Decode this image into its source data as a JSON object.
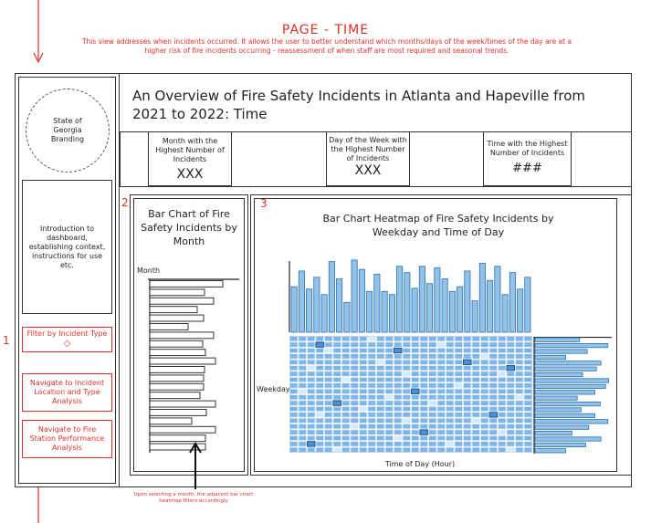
{
  "header": {
    "page_title": "PAGE - TIME",
    "description": "This view addresses when incidents occurred. It allows the user to better understand which months/days of the week/times of the day are at a higher risk of fire incidents occurring - reassessment of when staff are most required and seasonal trends."
  },
  "sidebar": {
    "branding": "State of Georgia Branding",
    "intro": "Introduction to dashboard, establishing context, instructions for use etc.",
    "filter_label": "Filter by Incident Type",
    "nav_incident": "Navigate to Incident Location and Type Analysis",
    "nav_station": "Navigate to Fire Station Performance Analysis",
    "marker_1": "1"
  },
  "main": {
    "title": "An Overview of Fire Safety Incidents in Atlanta and Hapeville from 2021 to 2022: Time"
  },
  "kpis": [
    {
      "label": "Month with the Highest Number of Incidents",
      "value": "XXX"
    },
    {
      "label": "Day of the Week with the Highest Number of Incidents",
      "value": "XXX"
    },
    {
      "label": "Time with the Highest Number of Incidents",
      "value": "###"
    }
  ],
  "month_chart": {
    "marker": "2",
    "title": "Bar Chart of Fire Safety Incidents by Month",
    "axis_label": "Month",
    "annotation": "Upon selecting a month, the adjacent bar chart heatmap filters accordingly"
  },
  "heatmap_chart": {
    "marker": "3",
    "title": "Bar Chart Heatmap of Fire Safety Incidents by Weekday and Time of Day",
    "y_label": "Weekday",
    "x_label": "Time of Day (Hour)"
  },
  "colors": {
    "accent_red": "#e0302a",
    "bar_blue": "#8fc3ea",
    "bar_stroke": "#2f6fae",
    "cell_blue": "#7fb6e6"
  },
  "chart_data": [
    {
      "type": "bar",
      "orientation": "horizontal",
      "values": [
        0.8,
        0.6,
        0.7,
        0.52,
        0.59,
        0.42,
        0.7,
        0.58,
        0.61,
        0.72,
        0.6,
        0.59,
        0.59,
        0.55,
        0.72,
        0.62,
        0.46,
        0.72,
        0.61,
        0.61
      ]
    },
    {
      "type": "bar",
      "values": [
        0.58,
        0.78,
        0.55,
        0.7,
        0.48,
        0.9,
        0.68,
        0.38,
        0.92,
        0.8,
        0.52,
        0.74,
        0.52,
        0.48,
        0.84,
        0.76,
        0.56,
        0.84,
        0.62,
        0.82,
        0.68,
        0.52,
        0.58,
        0.78,
        0.4,
        0.88,
        0.66,
        0.84,
        0.48,
        0.76,
        0.55,
        0.7
      ]
    },
    {
      "type": "bar",
      "orientation": "horizontal",
      "values": [
        0.58,
        0.95,
        0.68,
        0.4,
        0.86,
        0.8,
        0.62,
        0.96,
        0.92,
        0.78,
        0.55,
        0.85,
        0.6,
        0.78,
        0.95,
        0.7,
        0.48,
        0.86,
        0.66,
        0.4
      ]
    },
    {
      "type": "heatmap",
      "rows": 20,
      "cols": 28,
      "highlight_cells": [
        [
          1,
          3
        ],
        [
          2,
          12
        ],
        [
          4,
          20
        ],
        [
          5,
          25
        ],
        [
          9,
          14
        ],
        [
          11,
          5
        ],
        [
          13,
          23
        ],
        [
          16,
          15
        ],
        [
          18,
          2
        ]
      ],
      "light_cells": [
        [
          0,
          9
        ],
        [
          1,
          17
        ],
        [
          2,
          4
        ],
        [
          3,
          22
        ],
        [
          4,
          10
        ],
        [
          5,
          2
        ],
        [
          6,
          13
        ],
        [
          6,
          24
        ],
        [
          7,
          6
        ],
        [
          8,
          19
        ],
        [
          9,
          1
        ],
        [
          10,
          11
        ],
        [
          10,
          26
        ],
        [
          11,
          16
        ],
        [
          12,
          8
        ],
        [
          13,
          3
        ],
        [
          14,
          13
        ],
        [
          14,
          21
        ],
        [
          15,
          7
        ],
        [
          16,
          24
        ],
        [
          17,
          12
        ],
        [
          18,
          18
        ],
        [
          19,
          5
        ],
        [
          19,
          25
        ]
      ]
    }
  ]
}
